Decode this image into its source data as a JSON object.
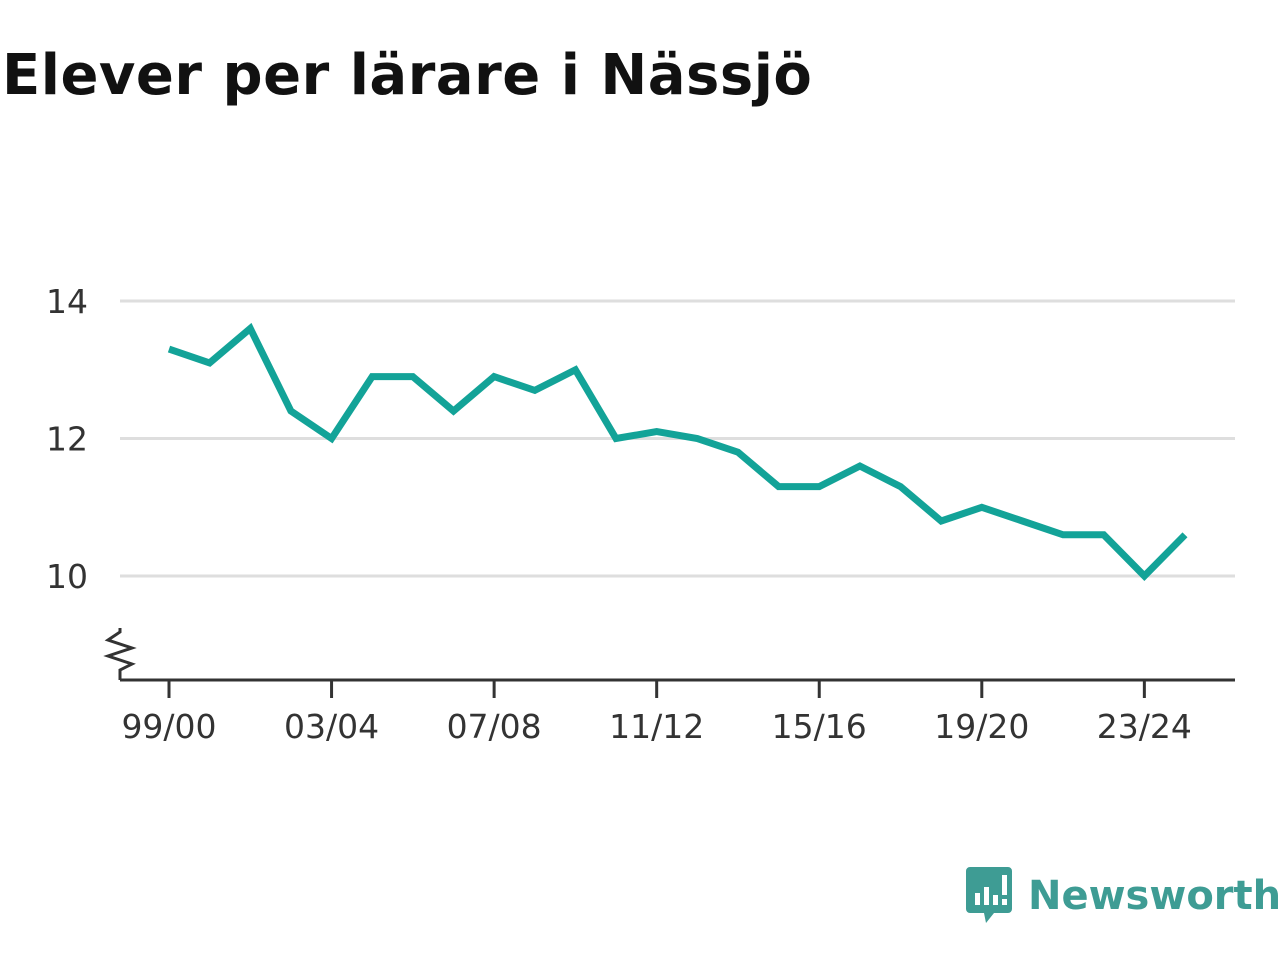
{
  "chart_data": {
    "type": "line",
    "title": "Elever per lärare i Nässjö",
    "xlabel": "",
    "ylabel": "",
    "ylim": [
      8.5,
      14.5
    ],
    "y_ticks": [
      10,
      12,
      14
    ],
    "y_axis_break": true,
    "grid": "horizontal",
    "x_tick_labels": [
      "99/00",
      "03/04",
      "07/08",
      "11/12",
      "15/16",
      "19/20",
      "23/24"
    ],
    "x_tick_indices": [
      0,
      4,
      8,
      12,
      16,
      20,
      24
    ],
    "series": [
      {
        "color": "#13a398",
        "x": [
          "99/00",
          "00/01",
          "01/02",
          "02/03",
          "03/04",
          "04/05",
          "05/06",
          "06/07",
          "07/08",
          "08/09",
          "09/10",
          "10/11",
          "11/12",
          "12/13",
          "13/14",
          "14/15",
          "15/16",
          "16/17",
          "17/18",
          "18/19",
          "19/20",
          "20/21",
          "21/22",
          "22/23",
          "23/24",
          "24/25"
        ],
        "values": [
          13.3,
          13.1,
          13.6,
          12.4,
          12.0,
          12.9,
          12.9,
          12.4,
          12.9,
          12.7,
          13.0,
          12.0,
          12.1,
          12.0,
          11.8,
          11.3,
          11.3,
          11.6,
          11.3,
          10.8,
          11.0,
          10.8,
          10.6,
          10.6,
          10.0,
          10.6
        ]
      }
    ]
  },
  "brand": {
    "name": "Newsworthy",
    "color": "#3e9c94",
    "logo_icon": "chart-bubble-icon"
  }
}
